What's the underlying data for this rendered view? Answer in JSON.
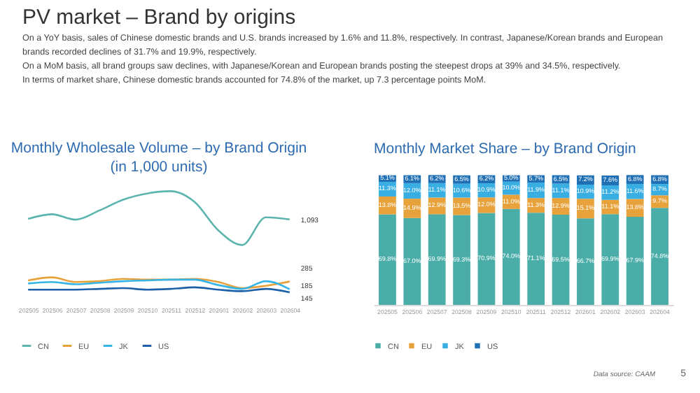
{
  "chart_data": [
    {
      "type": "other",
      "title": "PV market – Brand by origins",
      "annotations": [
        "On a YoY basis, sales of Chinese domestic brands and U.S. brands increased by 1.6% and 11.8%, respectively. In contrast, Japanese/Korean brands and European brands recorded declines of 31.7% and 19.9%, respectively.",
        "On a MoM basis, all brand groups saw declines, with Japanese/Korean and European brands posting the steepest drops at 39% and 34.5%, respectively.",
        "In terms of market share, Chinese domestic brands accounted for 74.8% of the market, up 7.3 percentage points MoM."
      ]
    },
    {
      "type": "line",
      "title": "Monthly Wholesale Volume – by Brand Origin",
      "subtitle": "(in 1,000 units)",
      "legend": "bottom",
      "categories": [
        "202505",
        "202506",
        "202507",
        "202508",
        "202509",
        "202510",
        "202511",
        "202512",
        "202601",
        "202602",
        "202603",
        "202604"
      ],
      "series": [
        {
          "name": "CN",
          "color": "#5bb5ae",
          "values": [
            1100,
            1160,
            1090,
            1210,
            1350,
            1430,
            1460,
            1320,
            950,
            760,
            1120,
            1093
          ],
          "value_labels": [
            null,
            null,
            null,
            null,
            null,
            null,
            null,
            null,
            null,
            null,
            null,
            "1,093"
          ]
        },
        {
          "name": "EU",
          "color": "#e8a23c",
          "values": [
            300,
            340,
            280,
            290,
            320,
            310,
            310,
            320,
            280,
            200,
            230,
            285
          ],
          "value_labels": [
            null,
            null,
            null,
            null,
            null,
            null,
            null,
            null,
            null,
            null,
            null,
            "285"
          ]
        },
        {
          "name": "JK",
          "color": "#36b4e6",
          "values": [
            260,
            280,
            250,
            270,
            290,
            300,
            310,
            310,
            240,
            190,
            290,
            185
          ],
          "value_labels": [
            null,
            null,
            null,
            null,
            null,
            null,
            null,
            null,
            null,
            null,
            null,
            "185"
          ]
        },
        {
          "name": "US",
          "color": "#1d5fa8",
          "values": [
            180,
            180,
            180,
            190,
            200,
            180,
            190,
            210,
            180,
            160,
            190,
            145
          ],
          "value_labels": [
            null,
            null,
            null,
            null,
            null,
            null,
            null,
            null,
            null,
            null,
            null,
            "145"
          ]
        }
      ]
    },
    {
      "type": "bar",
      "title": "Monthly Market Share – by Brand Origin",
      "stacked": true,
      "legend": "bottom",
      "categories": [
        "202505",
        "202506",
        "202507",
        "202508",
        "202509",
        "202510",
        "202511",
        "202512",
        "202601",
        "202602",
        "202603",
        "202604"
      ],
      "annotations": [
        "Data source: CAAM",
        "5"
      ],
      "series": [
        {
          "name": "CN",
          "color": "#4aada8",
          "values": [
            69.8,
            67.0,
            69.9,
            69.3,
            70.9,
            74.0,
            71.1,
            69.5,
            66.7,
            69.9,
            67.9,
            74.8
          ],
          "value_labels": [
            "69.8%",
            "67.0%",
            "69.9%",
            "69.3%",
            "70.9%",
            "74.0%",
            "71.1%",
            "69.5%",
            "66.7%",
            "69.9%",
            "67.9%",
            "74.8%"
          ]
        },
        {
          "name": "EU",
          "color": "#e8a23c",
          "values": [
            13.8,
            14.9,
            12.9,
            13.5,
            12.0,
            11.0,
            11.3,
            12.9,
            15.1,
            11.1,
            13.8,
            9.7
          ],
          "value_labels": [
            "13.8%",
            "14.9%",
            "12.9%",
            "13.5%",
            "12.0%",
            "11.0%",
            "11.3%",
            "12.9%",
            "15.1%",
            "11.1%",
            "13.8%",
            "9.7%"
          ]
        },
        {
          "name": "JK",
          "color": "#39aee3",
          "values": [
            11.3,
            12.0,
            11.1,
            10.6,
            10.9,
            10.0,
            11.9,
            11.1,
            10.9,
            11.2,
            11.6,
            8.7
          ],
          "value_labels": [
            "11.3%",
            "12.0%",
            "11.1%",
            "10.6%",
            "10.9%",
            "10.0%",
            "11.9%",
            "11.1%",
            "10.9%",
            "11.2%",
            "11.6%",
            "8.7%"
          ]
        },
        {
          "name": "US",
          "color": "#1f6fb5",
          "values": [
            5.1,
            6.1,
            6.2,
            6.5,
            6.2,
            5.0,
            5.7,
            6.5,
            7.2,
            7.6,
            6.8,
            6.8
          ],
          "value_labels": [
            "5.1%",
            "6.1%",
            "6.2%",
            "6.5%",
            "6.2%",
            "5.0%",
            "5.7%",
            "6.5%",
            "7.2%",
            "7.6%",
            "6.8%",
            "6.8%"
          ]
        }
      ]
    }
  ]
}
